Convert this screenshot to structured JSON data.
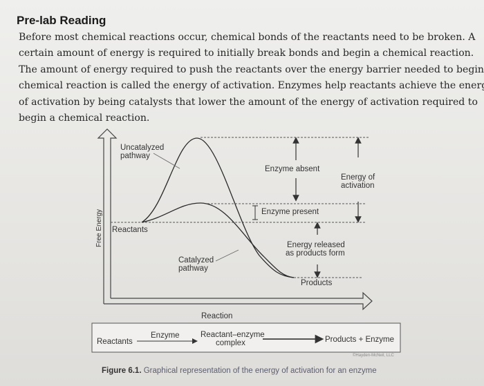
{
  "reading": {
    "title": "Pre-lab Reading",
    "lines": [
      "Before most chemical reactions occur, chemical bonds of the reactants need to be broken. A",
      "certain amount of energy is required to initially break bonds and begin a chemical reaction.",
      "The amount of energy required to push the reactants over the energy barrier needed to begin a",
      "chemical reaction is called the energy of activation. Enzymes help reactants achieve the energy",
      "of activation by being catalysts that lower the amount of the energy of activation required to",
      "begin a chemical reaction."
    ]
  },
  "figure": {
    "y_axis_label": "Free Energy",
    "x_axis_label": "Reaction",
    "uncatalyzed": [
      "Uncatalyzed",
      "pathway"
    ],
    "catalyzed": [
      "Catalyzed",
      "pathway"
    ],
    "reactants": "Reactants",
    "enzyme_absent": "Enzyme absent",
    "enzyme_present": "Enzyme present",
    "energy_of_activation": [
      "Energy of",
      "activation"
    ],
    "energy_released": [
      "Energy released",
      "as products form"
    ],
    "products": "Products",
    "scheme": {
      "reactants": "Reactants",
      "enzyme": "Enzyme",
      "complex": [
        "Reactant–enzyme",
        "complex"
      ],
      "result": "Products + Enzyme"
    },
    "credit": "©Hayden-McNeil, LLC",
    "caption_number": "Figure 6.1.",
    "caption_text": "Graphical representation of the energy of activation for an enzyme"
  }
}
